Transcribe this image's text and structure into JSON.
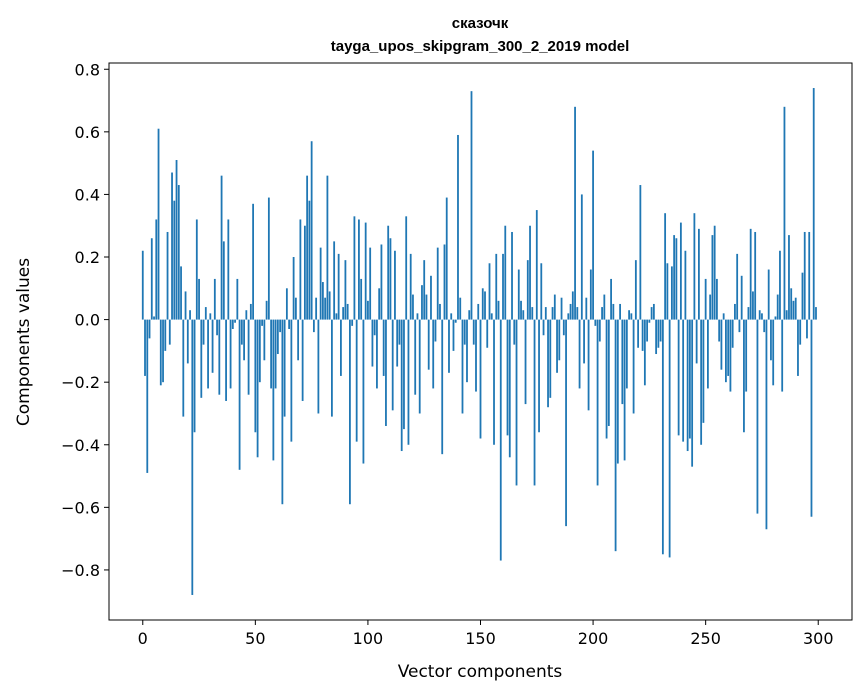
{
  "chart_data": {
    "type": "bar",
    "title": "сказочк",
    "subtitle": "tayga_upos_skipgram_300_2_2019 model",
    "xlabel": "Vector components",
    "ylabel": "Components values",
    "xlim": [
      -15,
      315
    ],
    "ylim": [
      -0.96,
      0.82
    ],
    "xticks": [
      0,
      50,
      100,
      150,
      200,
      250,
      300
    ],
    "xtick_labels": [
      "0",
      "50",
      "100",
      "150",
      "200",
      "250",
      "300"
    ],
    "yticks": [
      -0.8,
      -0.6,
      -0.4,
      -0.2,
      0.0,
      0.2,
      0.4,
      0.6,
      0.8
    ],
    "ytick_labels": [
      "−0.8",
      "−0.6",
      "−0.4",
      "−0.2",
      "0.0",
      "0.2",
      "0.4",
      "0.6",
      "0.8"
    ],
    "grid": false,
    "bar_color": "#1f77b4",
    "values": [
      0.22,
      -0.18,
      -0.49,
      -0.06,
      0.26,
      0.01,
      0.32,
      0.61,
      -0.21,
      -0.2,
      -0.1,
      0.28,
      -0.08,
      0.47,
      0.38,
      0.51,
      0.43,
      0.17,
      -0.31,
      0.09,
      -0.14,
      0.03,
      -0.88,
      -0.36,
      0.32,
      0.13,
      -0.25,
      -0.08,
      0.04,
      -0.22,
      0.02,
      -0.17,
      0.13,
      -0.05,
      -0.24,
      0.46,
      0.25,
      -0.26,
      0.32,
      -0.22,
      -0.03,
      -0.01,
      0.13,
      -0.48,
      -0.08,
      -0.13,
      0.03,
      -0.24,
      0.05,
      0.37,
      -0.36,
      -0.44,
      -0.2,
      -0.02,
      -0.13,
      0.06,
      0.39,
      -0.22,
      -0.45,
      -0.22,
      -0.11,
      -0.04,
      -0.59,
      -0.31,
      0.1,
      -0.03,
      -0.39,
      0.2,
      0.07,
      -0.13,
      0.32,
      -0.26,
      0.3,
      0.46,
      0.38,
      0.57,
      -0.04,
      0.07,
      -0.3,
      0.23,
      0.12,
      0.07,
      0.46,
      0.09,
      -0.31,
      0.25,
      0.02,
      0.21,
      -0.18,
      0.04,
      0.19,
      0.05,
      -0.59,
      -0.02,
      0.33,
      -0.39,
      0.32,
      0.13,
      -0.46,
      0.31,
      0.06,
      0.23,
      -0.15,
      -0.05,
      -0.22,
      0.1,
      0.24,
      -0.18,
      -0.34,
      0.3,
      0.26,
      -0.29,
      0.22,
      -0.15,
      -0.08,
      -0.42,
      -0.35,
      0.33,
      -0.4,
      0.21,
      0.08,
      -0.24,
      0.02,
      -0.3,
      0.11,
      0.19,
      0.08,
      -0.16,
      0.14,
      -0.22,
      -0.07,
      0.23,
      0.05,
      -0.43,
      0.24,
      0.39,
      -0.17,
      0.02,
      -0.1,
      -0.01,
      0.59,
      0.07,
      -0.3,
      -0.08,
      -0.2,
      0.03,
      0.73,
      -0.08,
      -0.23,
      0.05,
      -0.38,
      0.1,
      0.09,
      -0.09,
      0.18,
      0.02,
      -0.4,
      0.21,
      0.06,
      -0.77,
      0.21,
      0.3,
      -0.37,
      -0.44,
      0.28,
      -0.08,
      -0.53,
      0.16,
      0.06,
      0.03,
      -0.27,
      0.19,
      0.3,
      0.04,
      -0.53,
      0.35,
      -0.36,
      0.18,
      -0.05,
      0.04,
      -0.28,
      -0.25,
      0.04,
      0.08,
      -0.17,
      -0.13,
      0.07,
      -0.05,
      -0.66,
      0.02,
      0.05,
      0.09,
      0.68,
      0.04,
      -0.22,
      0.4,
      -0.14,
      0.07,
      -0.29,
      0.16,
      0.54,
      -0.02,
      -0.53,
      -0.07,
      0.04,
      0.08,
      -0.38,
      -0.34,
      0.13,
      0.05,
      -0.74,
      -0.46,
      0.05,
      -0.27,
      -0.45,
      -0.22,
      0.03,
      0.02,
      -0.3,
      0.19,
      -0.09,
      0.43,
      -0.1,
      -0.21,
      -0.07,
      -0.01,
      0.04,
      0.05,
      -0.11,
      -0.09,
      -0.07,
      -0.75,
      0.34,
      0.18,
      -0.76,
      0.17,
      0.27,
      0.26,
      -0.37,
      0.31,
      -0.39,
      0.22,
      -0.42,
      -0.38,
      -0.47,
      0.34,
      -0.14,
      0.29,
      -0.4,
      -0.33,
      0.13,
      -0.22,
      0.08,
      0.27,
      0.3,
      0.13,
      -0.07,
      -0.16,
      0.02,
      -0.2,
      -0.18,
      -0.23,
      -0.09,
      0.05,
      0.21,
      -0.04,
      0.14,
      -0.36,
      -0.23,
      0.04,
      0.29,
      0.09,
      0.28,
      -0.62,
      0.03,
      0.02,
      -0.04,
      -0.67,
      0.16,
      -0.13,
      -0.21,
      0.01,
      0.08,
      0.22,
      -0.23,
      0.68,
      0.03,
      0.27,
      0.1,
      0.06,
      0.07,
      -0.18,
      -0.08,
      0.15,
      0.28,
      -0.06,
      0.28,
      -0.63,
      0.74,
      0.04
    ]
  }
}
